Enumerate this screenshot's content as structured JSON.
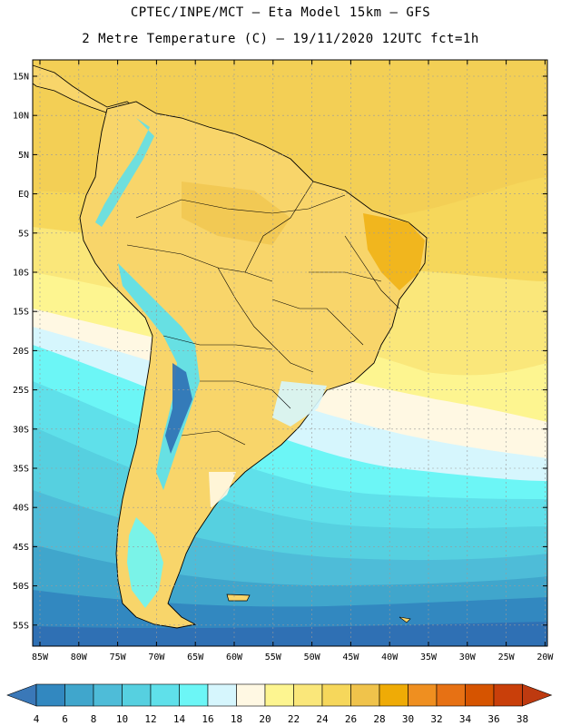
{
  "header": {
    "line1": "CPTEC/INPE/MCT –  Eta Model 15km – GFS",
    "line2": "2 Metre Temperature (C) – 19/11/2020 12UTC fct=1h"
  },
  "map": {
    "lat_labels": [
      "15N",
      "10N",
      "5N",
      "EQ",
      "5S",
      "10S",
      "15S",
      "20S",
      "25S",
      "30S",
      "35S",
      "40S",
      "45S",
      "50S",
      "55S"
    ],
    "lon_labels": [
      "85W",
      "80W",
      "75W",
      "70W",
      "65W",
      "60W",
      "55W",
      "50W",
      "45W",
      "40W",
      "35W",
      "30W",
      "25W",
      "20W"
    ],
    "colors": {
      "ocean_north": "#f3cf55",
      "ocean_mid": "#fdf07a",
      "land": "#f8d56a",
      "grid": "#9a9a9a"
    }
  },
  "colorbar": {
    "labels": [
      "4",
      "6",
      "8",
      "10",
      "12",
      "14",
      "16",
      "18",
      "20",
      "22",
      "24",
      "26",
      "28",
      "30",
      "32",
      "34",
      "36",
      "38"
    ],
    "colors": [
      "#2f70b4",
      "#3288c0",
      "#40a6cc",
      "#4ebcd8",
      "#56d0e0",
      "#5fe0ea",
      "#6cf6f6",
      "#d6f6fd",
      "#fff8e3",
      "#fdf590",
      "#fae77a",
      "#f6d75b",
      "#f0c34b",
      "#efab06",
      "#ef8f20",
      "#e77114",
      "#d65400",
      "#c93f0a"
    ],
    "low_color": "#3a78b8",
    "high_color": "#be3a10"
  }
}
